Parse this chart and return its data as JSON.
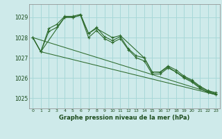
{
  "background_color": "#ceeaea",
  "grid_color": "#a8d8d8",
  "line_color": "#2d6b2d",
  "title": "Graphe pression niveau de la mer (hPa)",
  "xlim": [
    -0.5,
    23.5
  ],
  "ylim": [
    1024.5,
    1029.65
  ],
  "yticks": [
    1025,
    1026,
    1027,
    1028,
    1029
  ],
  "xticks": [
    0,
    1,
    2,
    3,
    4,
    5,
    6,
    7,
    8,
    9,
    10,
    11,
    12,
    13,
    14,
    15,
    16,
    17,
    18,
    19,
    20,
    21,
    22,
    23
  ],
  "series1": {
    "x": [
      0,
      1,
      2,
      3,
      4,
      5,
      6,
      7,
      8,
      9,
      10,
      11,
      12,
      13,
      14,
      15,
      16,
      17,
      18,
      19,
      20,
      21,
      22,
      23
    ],
    "y": [
      1028.0,
      1027.3,
      1028.45,
      1028.65,
      1029.05,
      1029.05,
      1029.15,
      1028.2,
      1028.5,
      1028.05,
      1027.85,
      1028.05,
      1027.45,
      1027.1,
      1027.0,
      1026.3,
      1026.3,
      1026.6,
      1026.4,
      1026.1,
      1025.9,
      1025.6,
      1025.38,
      1025.28
    ]
  },
  "series2": {
    "x": [
      0,
      1,
      2,
      3,
      4,
      5,
      6,
      7,
      8,
      9,
      10,
      11,
      12,
      13,
      14,
      15,
      16,
      17,
      18,
      19,
      20,
      21,
      22,
      23
    ],
    "y": [
      1028.0,
      1027.3,
      1028.3,
      1028.5,
      1029.0,
      1029.0,
      1029.1,
      1028.0,
      1028.35,
      1027.95,
      1027.75,
      1027.95,
      1027.4,
      1027.0,
      1026.85,
      1026.2,
      1026.2,
      1026.5,
      1026.3,
      1026.0,
      1025.8,
      1025.5,
      1025.28,
      1025.18
    ]
  },
  "series3": {
    "x": [
      0,
      1,
      4,
      5,
      6,
      7,
      8,
      10,
      11,
      14,
      15,
      16,
      17,
      19,
      20,
      21,
      22,
      23
    ],
    "y": [
      1028.0,
      1027.3,
      1029.0,
      1029.0,
      1029.1,
      1028.2,
      1028.45,
      1028.0,
      1028.1,
      1027.0,
      1026.3,
      1026.28,
      1026.55,
      1026.05,
      1025.85,
      1025.55,
      1025.35,
      1025.23
    ]
  },
  "trend1": {
    "x": [
      0,
      23
    ],
    "y": [
      1028.0,
      1025.2
    ]
  },
  "trend2": {
    "x": [
      1,
      23
    ],
    "y": [
      1027.3,
      1025.18
    ]
  }
}
